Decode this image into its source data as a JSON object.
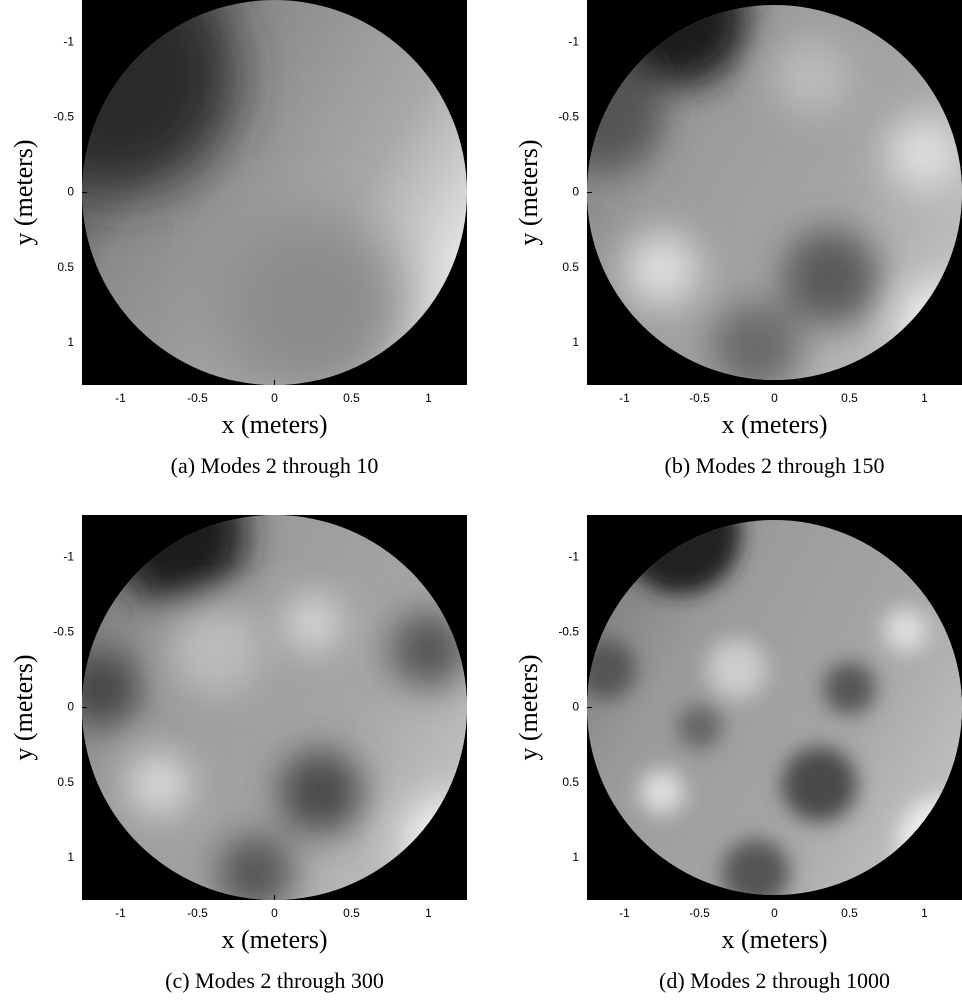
{
  "chart_data": [
    {
      "type": "image",
      "caption": "(a) Modes 2 through 10",
      "xlabel": "x (meters)",
      "ylabel": "y (meters)",
      "xlim": [
        -1.25,
        1.25
      ],
      "ylim": [
        -1.28,
        1.28
      ],
      "y_reversed": true,
      "xticks": [
        -1,
        -0.5,
        0,
        0.5,
        1
      ],
      "yticks": [
        -1,
        -0.5,
        0,
        0.5,
        1
      ],
      "colormap": "gray"
    },
    {
      "type": "image",
      "caption": "(b) Modes 2 through 150",
      "xlabel": "x (meters)",
      "ylabel": "y (meters)",
      "xlim": [
        -1.25,
        1.25
      ],
      "ylim": [
        -1.28,
        1.28
      ],
      "y_reversed": true,
      "xticks": [
        -1,
        -0.5,
        0,
        0.5,
        1
      ],
      "yticks": [
        -1,
        -0.5,
        0,
        0.5,
        1
      ],
      "colormap": "gray"
    },
    {
      "type": "image",
      "caption": "(c) Modes 2 through 300",
      "xlabel": "x (meters)",
      "ylabel": "y (meters)",
      "xlim": [
        -1.25,
        1.25
      ],
      "ylim": [
        -1.28,
        1.28
      ],
      "y_reversed": true,
      "xticks": [
        -1,
        -0.5,
        0,
        0.5,
        1
      ],
      "yticks": [
        -1,
        -0.5,
        0,
        0.5,
        1
      ],
      "colormap": "gray"
    },
    {
      "type": "image",
      "caption": "(d) Modes 2 through 1000",
      "xlabel": "x (meters)",
      "ylabel": "y (meters)",
      "xlim": [
        -1.25,
        1.25
      ],
      "ylim": [
        -1.28,
        1.28
      ],
      "y_reversed": true,
      "xticks": [
        -1,
        -0.5,
        0,
        0.5,
        1
      ],
      "yticks": [
        -1,
        -0.5,
        0,
        0.5,
        1
      ],
      "colormap": "gray"
    }
  ]
}
